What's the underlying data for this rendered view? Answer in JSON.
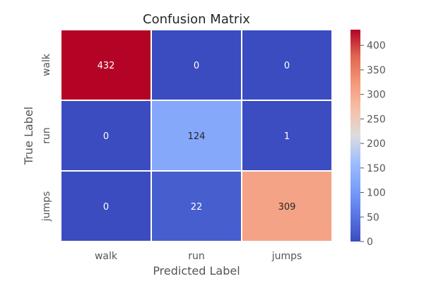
{
  "chart_data": {
    "type": "heatmap",
    "title": "Confusion Matrix",
    "xlabel": "Predicted Label",
    "ylabel": "True Label",
    "x_categories": [
      "walk",
      "run",
      "jumps"
    ],
    "y_categories": [
      "walk",
      "run",
      "jumps"
    ],
    "values": [
      [
        432,
        0,
        0
      ],
      [
        0,
        124,
        1
      ],
      [
        0,
        22,
        309
      ]
    ],
    "colormap": "coolwarm",
    "color_range": [
      0,
      432
    ],
    "colorbar_ticks": [
      0,
      50,
      100,
      150,
      200,
      250,
      300,
      350,
      400
    ],
    "grid": false
  },
  "colors": {
    "text": "#262626",
    "axis_text": "#555555",
    "cell_border": "#ffffff",
    "annot_light": "#ffffff",
    "annot_dark": "#262626"
  }
}
